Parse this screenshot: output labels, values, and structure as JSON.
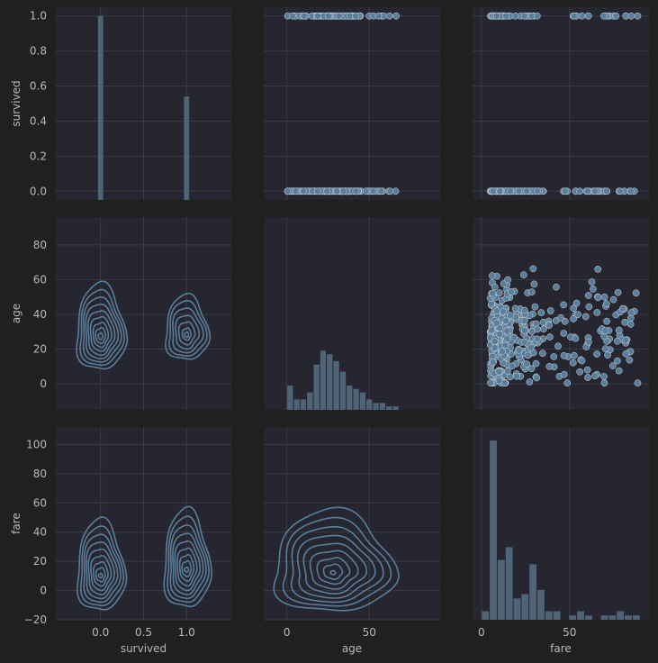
{
  "chart_data": {
    "type": "pairplot",
    "variables": [
      "survived",
      "age",
      "fare"
    ],
    "colors": {
      "background": "#202020",
      "panel": "#262630",
      "grid": "#3a3a44",
      "mark": "#5a7d9a",
      "bar": "#4f6577",
      "text": "#b8b8b8"
    },
    "axis_labels": {
      "x": [
        "survived",
        "age",
        "fare"
      ],
      "y": [
        "survived",
        "age",
        "fare"
      ]
    },
    "x_ticks": {
      "survived": {
        "values": [
          0.0,
          0.5,
          1.0
        ],
        "labels": [
          "0.0",
          "0.5",
          "1.0"
        ]
      },
      "age": {
        "values": [
          0,
          50
        ],
        "labels": [
          "0",
          "50"
        ]
      },
      "fare": {
        "values": [
          0,
          50
        ],
        "labels": [
          "0",
          "50"
        ]
      }
    },
    "y_ticks": {
      "survived": {
        "values": [
          0.0,
          0.2,
          0.4,
          0.6,
          0.8,
          1.0
        ],
        "labels": [
          "0.0",
          "0.2",
          "0.4",
          "0.6",
          "0.8",
          "1.0"
        ]
      },
      "age": {
        "values": [
          0,
          20,
          40,
          60,
          80
        ],
        "labels": [
          "0",
          "20",
          "40",
          "60",
          "80"
        ]
      },
      "fare": {
        "values": [
          -20,
          0,
          20,
          40,
          60,
          80,
          100
        ],
        "labels": [
          "−20",
          "0",
          "20",
          "40",
          "60",
          "80",
          "100"
        ]
      }
    },
    "ranges": {
      "survived_x": [
        -0.52,
        1.52
      ],
      "survived_y": [
        -0.05,
        1.05
      ],
      "age_x": [
        -14,
        93
      ],
      "age_y": [
        -15,
        96
      ],
      "fare_x": [
        -5,
        95
      ],
      "fare_y": [
        -20,
        112
      ]
    },
    "diag_survived": {
      "categories": [
        0,
        1
      ],
      "bins": [
        [
          -0.03,
          0.03
        ],
        [
          0.97,
          1.03
        ]
      ],
      "relative_counts": [
        1.0,
        0.54
      ]
    },
    "diag_age": {
      "bin_edges": [
        0,
        4,
        8,
        12,
        16,
        20,
        24,
        28,
        32,
        36,
        40,
        44,
        48,
        52,
        56,
        60,
        64,
        68,
        72,
        76,
        80
      ],
      "counts": [
        7,
        3,
        3,
        5,
        13,
        17,
        16,
        14,
        11,
        7,
        6,
        5,
        3,
        2,
        2,
        1,
        1,
        0,
        0,
        0
      ]
    },
    "diag_fare": {
      "bin_edges": [
        0,
        4.5,
        9,
        13.5,
        18,
        22.5,
        27,
        31.5,
        36,
        40.5,
        45,
        49.5,
        54,
        58.5,
        63,
        67.5,
        72,
        76.5,
        81,
        85.5,
        90
      ],
      "counts": [
        2,
        42,
        14,
        17,
        5,
        6,
        13,
        7,
        2,
        2,
        0,
        1,
        2,
        1,
        0,
        1,
        1,
        2,
        1,
        1
      ]
    },
    "kde_survived_age": [
      {
        "center": [
          0,
          27
        ],
        "sx": 0.22,
        "sy": 15,
        "levels": [
          0.13,
          0.25,
          0.36,
          0.47,
          0.58,
          0.69,
          0.8,
          0.9,
          1.0
        ],
        "kx": 1.35,
        "ky": 3.1
      },
      {
        "center": [
          1,
          28
        ],
        "sx": 0.2,
        "sy": 12,
        "levels": [
          0.13,
          0.27,
          0.42,
          0.58,
          0.74,
          0.9,
          1.0
        ],
        "kx": 1.3,
        "ky": 2.9
      }
    ],
    "kde_survived_fare": [
      {
        "center": [
          0,
          10
        ],
        "sx": 0.2,
        "sy": 11,
        "levels": [
          0.13,
          0.25,
          0.36,
          0.47,
          0.58,
          0.69,
          0.8,
          0.9,
          1.0
        ],
        "kx": 1.45,
        "ky": 5.5
      },
      {
        "center": [
          1,
          14
        ],
        "sx": 0.2,
        "sy": 13,
        "levels": [
          0.13,
          0.25,
          0.36,
          0.47,
          0.58,
          0.69,
          0.8,
          0.9,
          1.0
        ],
        "kx": 1.4,
        "ky": 5.0
      }
    ],
    "kde_age_fare": [
      {
        "center": [
          28,
          12
        ],
        "sx": 13,
        "sy": 10,
        "levels": [
          0.13,
          0.25,
          0.36,
          0.47,
          0.58,
          0.69,
          0.8,
          0.9,
          1.0
        ],
        "kx": 3.1,
        "ky": 6.8
      }
    ]
  }
}
